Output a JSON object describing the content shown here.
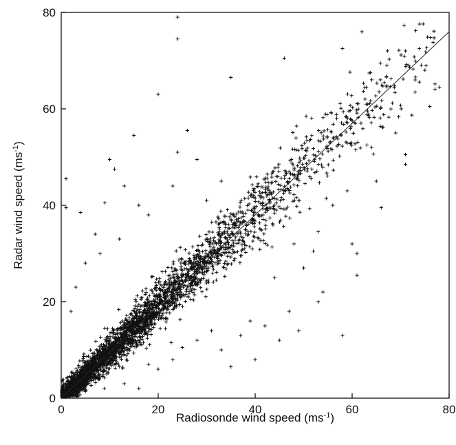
{
  "chart_data": {
    "type": "scatter",
    "title": "",
    "xlabel": "Radiosonde wind speed (ms",
    "xlabel_sup": "-1",
    "xlabel_end": ")",
    "ylabel": "Radar wind speed (ms",
    "ylabel_sup": "-1",
    "ylabel_end": ")",
    "xlim": [
      0,
      80
    ],
    "ylim": [
      0,
      80
    ],
    "xticks": [
      0,
      20,
      40,
      60,
      80
    ],
    "yticks": [
      0,
      20,
      40,
      60,
      80
    ],
    "grid": false,
    "legend": "none",
    "marker": "plus",
    "fit_line": {
      "x": [
        0,
        80
      ],
      "y": [
        0,
        76
      ]
    },
    "outliers": [
      {
        "x": 24,
        "y": 79
      },
      {
        "x": 24,
        "y": 74.5
      },
      {
        "x": 20,
        "y": 63
      },
      {
        "x": 35,
        "y": 66.5
      },
      {
        "x": 1,
        "y": 45.5
      },
      {
        "x": 1,
        "y": 39.5
      },
      {
        "x": 10,
        "y": 49.5
      },
      {
        "x": 4,
        "y": 38.5
      },
      {
        "x": 13,
        "y": 44
      },
      {
        "x": 9,
        "y": 40.5
      },
      {
        "x": 16,
        "y": 40
      },
      {
        "x": 7,
        "y": 34
      },
      {
        "x": 12,
        "y": 33
      },
      {
        "x": 18,
        "y": 38
      },
      {
        "x": 23,
        "y": 44
      },
      {
        "x": 3,
        "y": 23
      },
      {
        "x": 5,
        "y": 28
      },
      {
        "x": 15,
        "y": 54.5
      },
      {
        "x": 26,
        "y": 55.5
      },
      {
        "x": 24,
        "y": 51
      },
      {
        "x": 28,
        "y": 49.5
      },
      {
        "x": 30,
        "y": 41
      },
      {
        "x": 33,
        "y": 45
      },
      {
        "x": 2,
        "y": 18
      },
      {
        "x": 8,
        "y": 30
      },
      {
        "x": 11,
        "y": 47.5
      },
      {
        "x": 62,
        "y": 76
      },
      {
        "x": 58,
        "y": 72.5
      },
      {
        "x": 46,
        "y": 70.5
      },
      {
        "x": 71,
        "y": 72
      },
      {
        "x": 78,
        "y": 64.5
      },
      {
        "x": 76,
        "y": 60.5
      },
      {
        "x": 71,
        "y": 50.5
      },
      {
        "x": 71,
        "y": 48.5
      },
      {
        "x": 66,
        "y": 39.5
      },
      {
        "x": 61,
        "y": 30
      },
      {
        "x": 60,
        "y": 32
      },
      {
        "x": 61,
        "y": 25.5
      },
      {
        "x": 58,
        "y": 13
      },
      {
        "x": 54,
        "y": 22
      },
      {
        "x": 53,
        "y": 20
      },
      {
        "x": 50,
        "y": 27
      },
      {
        "x": 52,
        "y": 30.5
      },
      {
        "x": 47,
        "y": 18
      },
      {
        "x": 45,
        "y": 12
      },
      {
        "x": 49,
        "y": 14
      },
      {
        "x": 40,
        "y": 8
      },
      {
        "x": 37,
        "y": 13
      },
      {
        "x": 42,
        "y": 15
      },
      {
        "x": 35,
        "y": 6.5
      },
      {
        "x": 33,
        "y": 10
      },
      {
        "x": 53,
        "y": 34.5
      },
      {
        "x": 56,
        "y": 40
      },
      {
        "x": 48,
        "y": 32
      },
      {
        "x": 44,
        "y": 25
      },
      {
        "x": 39,
        "y": 16
      },
      {
        "x": 65,
        "y": 45
      },
      {
        "x": 69,
        "y": 55
      },
      {
        "x": 73,
        "y": 66
      },
      {
        "x": 75,
        "y": 68
      },
      {
        "x": 64,
        "y": 52
      },
      {
        "x": 59,
        "y": 43
      },
      {
        "x": 18,
        "y": 7
      },
      {
        "x": 20,
        "y": 6
      },
      {
        "x": 13,
        "y": 3
      },
      {
        "x": 25,
        "y": 10.5
      },
      {
        "x": 28,
        "y": 12
      },
      {
        "x": 31,
        "y": 14
      },
      {
        "x": 23,
        "y": 8
      },
      {
        "x": 16,
        "y": 2
      }
    ],
    "band": {
      "n_points": 3200,
      "x_range": [
        0,
        78
      ],
      "slope": 0.96,
      "x_density_scale": 22
    }
  }
}
